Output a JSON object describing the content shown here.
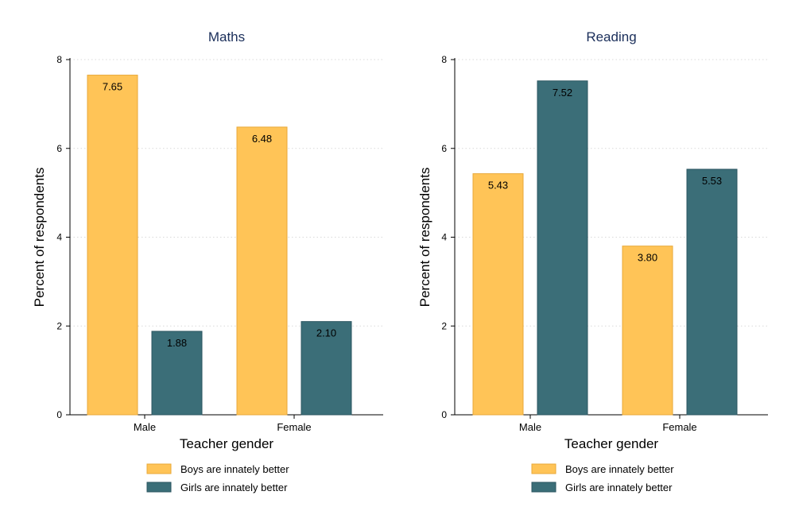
{
  "chart_data": [
    {
      "type": "bar",
      "title": "Maths",
      "xlabel": "Teacher gender",
      "ylabel": "Percent of respondents",
      "categories": [
        "Male",
        "Female"
      ],
      "ylim": [
        0,
        8
      ],
      "yticks": [
        0,
        2,
        4,
        6,
        8
      ],
      "grid": true,
      "series": [
        {
          "name": "Boys are innately better",
          "values": [
            7.65,
            6.48
          ],
          "labels": [
            "7.65",
            "6.48"
          ],
          "color": "#FFC457"
        },
        {
          "name": "Girls are innately better",
          "values": [
            1.88,
            2.1
          ],
          "labels": [
            "1.88",
            "2.10"
          ],
          "color": "#3B6E78"
        }
      ],
      "legend": "bottom"
    },
    {
      "type": "bar",
      "title": "Reading",
      "xlabel": "Teacher gender",
      "ylabel": "Percent of respondents",
      "categories": [
        "Male",
        "Female"
      ],
      "ylim": [
        0,
        8
      ],
      "yticks": [
        0,
        2,
        4,
        6,
        8
      ],
      "grid": true,
      "series": [
        {
          "name": "Boys are innately better",
          "values": [
            5.43,
            3.8
          ],
          "labels": [
            "5.43",
            "3.80"
          ],
          "color": "#FFC457"
        },
        {
          "name": "Girls are innately better",
          "values": [
            7.52,
            5.53
          ],
          "labels": [
            "7.52",
            "5.53"
          ],
          "color": "#3B6E78"
        }
      ],
      "legend": "bottom"
    }
  ],
  "colors": {
    "title": "#1a2e5a",
    "axis": "#000000",
    "grid": "#d9d9d9",
    "bar_outline_boys": "#E8A93A",
    "bar_outline_girls": "#2B5560"
  }
}
